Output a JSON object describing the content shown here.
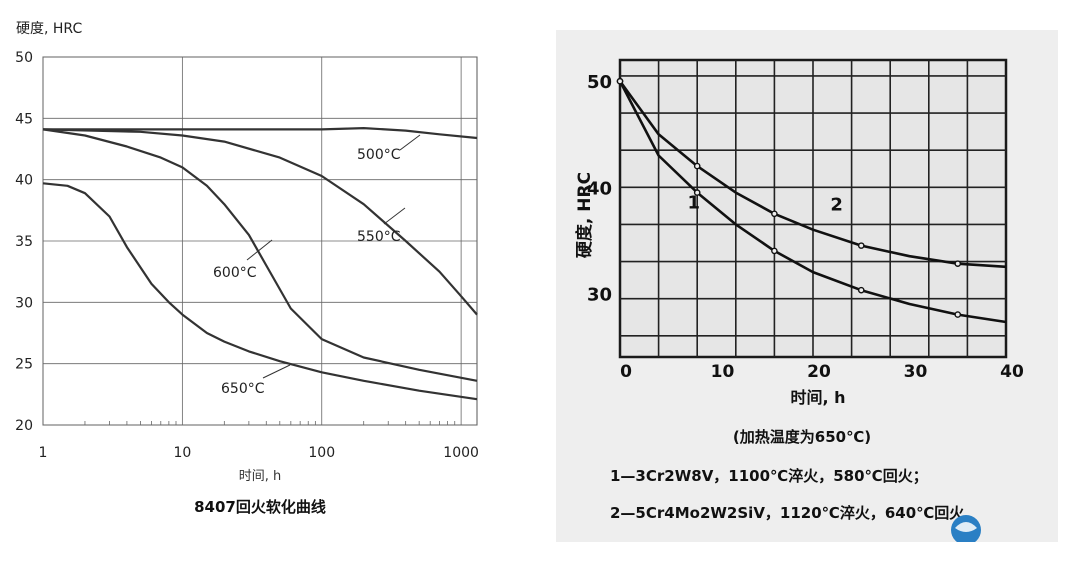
{
  "chart_data": [
    {
      "type": "line",
      "title": "8407回火软化曲线",
      "ylabel": "硬度, HRC",
      "xlabel": "时间, h",
      "xscale": "log",
      "xlim": [
        1,
        1300
      ],
      "ylim": [
        20,
        50
      ],
      "xticks": [
        1,
        10,
        100,
        1000
      ],
      "xtick_labels": [
        "1",
        "10",
        "100",
        "1000"
      ],
      "yticks": [
        20,
        25,
        30,
        35,
        40,
        45,
        50
      ],
      "ytick_labels": [
        "20",
        "25",
        "30",
        "35",
        "40",
        "45",
        "50"
      ],
      "grid": true,
      "legend": "none",
      "series": [
        {
          "name": "500°C",
          "color": "#333333",
          "points": [
            [
              1,
              44.1
            ],
            [
              10,
              44.1
            ],
            [
              50,
              44.1
            ],
            [
              100,
              44.1
            ],
            [
              200,
              44.2
            ],
            [
              400,
              44.0
            ],
            [
              700,
              43.7
            ],
            [
              1300,
              43.4
            ]
          ]
        },
        {
          "name": "550°C",
          "color": "#333333",
          "points": [
            [
              1,
              44.1
            ],
            [
              5,
              43.9
            ],
            [
              10,
              43.6
            ],
            [
              20,
              43.1
            ],
            [
              50,
              41.8
            ],
            [
              100,
              40.3
            ],
            [
              200,
              38.0
            ],
            [
              400,
              35.0
            ],
            [
              700,
              32.5
            ],
            [
              1000,
              30.5
            ],
            [
              1300,
              29.0
            ]
          ]
        },
        {
          "name": "600°C",
          "color": "#333333",
          "points": [
            [
              1,
              44.1
            ],
            [
              2,
              43.6
            ],
            [
              4,
              42.7
            ],
            [
              7,
              41.8
            ],
            [
              10,
              41.0
            ],
            [
              15,
              39.5
            ],
            [
              20,
              38.0
            ],
            [
              30,
              35.5
            ],
            [
              40,
              33.0
            ],
            [
              60,
              29.5
            ],
            [
              100,
              27.0
            ],
            [
              200,
              25.5
            ],
            [
              500,
              24.5
            ],
            [
              1300,
              23.6
            ]
          ]
        },
        {
          "name": "650°C",
          "color": "#333333",
          "points": [
            [
              1,
              39.7
            ],
            [
              1.5,
              39.5
            ],
            [
              2,
              38.9
            ],
            [
              3,
              37.0
            ],
            [
              4,
              34.5
            ],
            [
              6,
              31.5
            ],
            [
              8,
              30.0
            ],
            [
              10,
              29.0
            ],
            [
              15,
              27.5
            ],
            [
              20,
              26.8
            ],
            [
              30,
              26.0
            ],
            [
              50,
              25.2
            ],
            [
              100,
              24.3
            ],
            [
              200,
              23.6
            ],
            [
              500,
              22.8
            ],
            [
              1300,
              22.1
            ]
          ]
        }
      ],
      "annotations": [
        {
          "text": "500°C",
          "at": [
            430,
            43.9
          ]
        },
        {
          "text": "550°C",
          "at": [
            290,
            36.8
          ]
        },
        {
          "text": "600°C",
          "at": [
            38,
            34.4
          ]
        },
        {
          "text": "650°C",
          "at": [
            52,
            25.0
          ]
        }
      ]
    },
    {
      "type": "line",
      "xlabel": "时间, h",
      "ylabel": "硬度, HRC",
      "note": "(加热温度为650℃)",
      "xlim": [
        0,
        40
      ],
      "ylim": [
        24,
        52
      ],
      "xticks": [
        0,
        10,
        20,
        30,
        40
      ],
      "xtick_labels": [
        "0",
        "10",
        "20",
        "30",
        "40"
      ],
      "yticks": [
        30,
        40,
        50
      ],
      "ytick_labels": [
        "30",
        "40",
        "50"
      ],
      "grid": true,
      "series": [
        {
          "name": "1",
          "color": "#111111",
          "points": [
            [
              0,
              50
            ],
            [
              4,
              43
            ],
            [
              8,
              39.5
            ],
            [
              12,
              36.5
            ],
            [
              16,
              34
            ],
            [
              20,
              32
            ],
            [
              25,
              30.3
            ],
            [
              30,
              29
            ],
            [
              35,
              28
            ],
            [
              40,
              27.3
            ]
          ]
        },
        {
          "name": "2",
          "color": "#111111",
          "points": [
            [
              0,
              50
            ],
            [
              4,
              45
            ],
            [
              8,
              42
            ],
            [
              12,
              39.5
            ],
            [
              16,
              37.5
            ],
            [
              20,
              36
            ],
            [
              25,
              34.5
            ],
            [
              30,
              33.5
            ],
            [
              35,
              32.8
            ],
            [
              40,
              32.5
            ]
          ]
        }
      ],
      "series_labels": [
        {
          "text": "1",
          "at": [
            7,
            38.0
          ]
        },
        {
          "text": "2",
          "at": [
            21.8,
            37.8
          ]
        }
      ],
      "legend_lines": [
        "1—3Cr2W8V，1100℃淬火，580℃回火；",
        "2—5Cr4Mo2W2SiV，1120℃淬火，640℃回火"
      ]
    }
  ]
}
